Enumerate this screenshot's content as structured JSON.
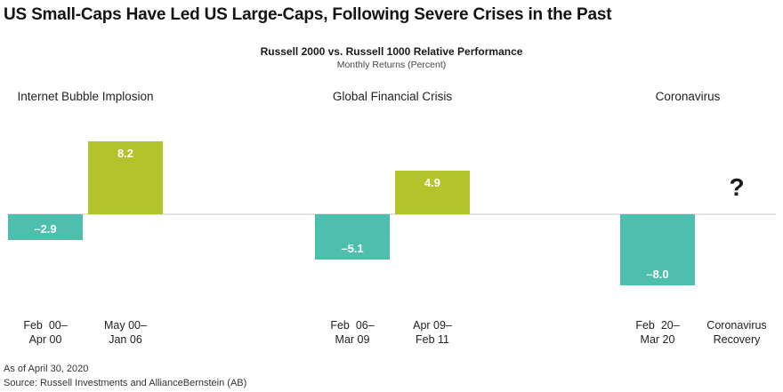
{
  "title": "US Small-Caps Have Led US Large-Caps, Following Severe Crises in the Past",
  "chart_data": {
    "type": "bar",
    "title": "Russell 2000 vs. Russell 1000 Relative Performance",
    "subtitle": "Monthly Returns (Percent)",
    "groups": [
      "Internet Bubble Implosion",
      "Global Financial Crisis",
      "Coronavirus"
    ],
    "categories": [
      [
        "Feb  00–",
        "Apr 00"
      ],
      [
        "May 00–",
        "Jan 06"
      ],
      [
        "Feb  06–",
        "Mar 09"
      ],
      [
        "Apr 09–",
        "Feb 11"
      ],
      [
        "Feb  20–",
        "Mar 20"
      ],
      [
        "Coronavirus",
        "Recovery"
      ]
    ],
    "values": [
      -2.9,
      8.2,
      -5.1,
      4.9,
      -8.0,
      null
    ],
    "value_labels": [
      "–2.9",
      "8.2",
      "–5.1",
      "4.9",
      "–8.0",
      "?"
    ],
    "colors": {
      "negative": "#4dbfac",
      "positive": "#b3c42a"
    },
    "legend": "none",
    "grid": false
  },
  "footnotes": [
    "As of April 30, 2020",
    "Source: Russell Investments and AllianceBernstein (AB)"
  ]
}
